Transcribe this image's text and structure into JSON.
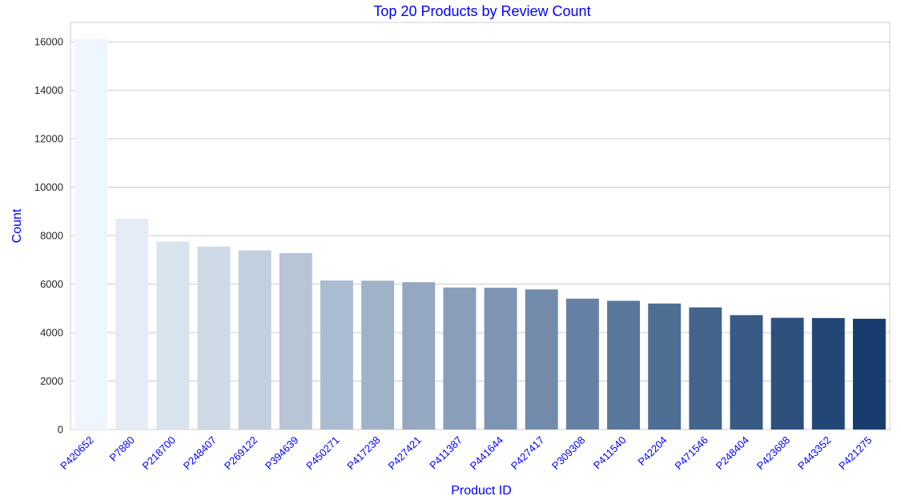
{
  "chart_data": {
    "type": "bar",
    "title": "Top 20 Products by Review Count",
    "xlabel": "Product ID",
    "ylabel": "Count",
    "ylim": [
      0,
      16800
    ],
    "yticks": [
      0,
      2000,
      4000,
      6000,
      8000,
      10000,
      12000,
      14000,
      16000
    ],
    "grid": "horizontal",
    "legend": "none",
    "categories": [
      "P420652",
      "P7880",
      "P218700",
      "P248407",
      "P269122",
      "P394639",
      "P450271",
      "P417238",
      "P427421",
      "P411387",
      "P441644",
      "P427417",
      "P309308",
      "P411540",
      "P42204",
      "P471546",
      "P248404",
      "P423688",
      "P443352",
      "P421275"
    ],
    "values": [
      16118,
      8700,
      7750,
      7550,
      7390,
      7280,
      6150,
      6140,
      6080,
      5860,
      5850,
      5780,
      5400,
      5310,
      5200,
      5040,
      4720,
      4610,
      4600,
      4570
    ],
    "colors": {
      "text_accent": "#0000ff",
      "tick_text": "#262626",
      "grid": "#cccccc",
      "frame": "#cccccc",
      "palette_start": "#f0f6fd",
      "palette_end": "#163d6e"
    }
  }
}
